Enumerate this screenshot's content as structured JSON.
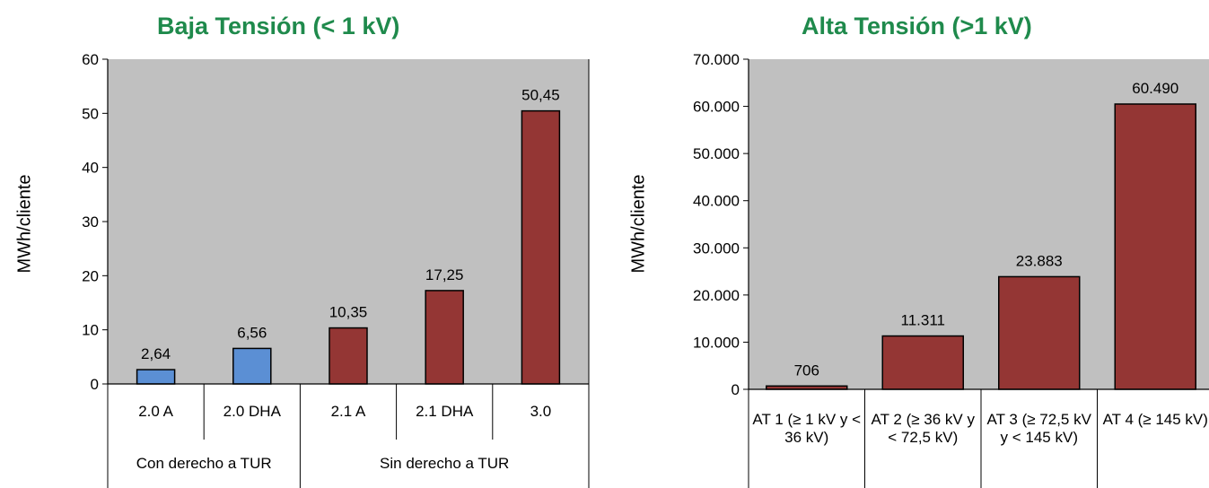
{
  "colors": {
    "title": "#1f8a4c",
    "plot_bg": "#c0c0c0",
    "blue": "#5b8fd4",
    "red": "#943634"
  },
  "chart_data": [
    {
      "type": "bar",
      "title": "Baja Tensión  (< 1 kV)",
      "ylabel": "MWh/cliente",
      "ylim": [
        0,
        60
      ],
      "yticks": [
        0,
        10,
        20,
        30,
        40,
        50,
        60
      ],
      "ytick_labels": [
        "0",
        "10",
        "20",
        "30",
        "40",
        "50",
        "60"
      ],
      "grid": false,
      "categories": [
        "2.0 A",
        "2.0 DHA",
        "2.1 A",
        "2.1 DHA",
        "3.0"
      ],
      "values": [
        2.64,
        6.56,
        10.35,
        17.25,
        50.45
      ],
      "value_labels": [
        "2,64",
        "6,56",
        "10,35",
        "17,25",
        "50,45"
      ],
      "bar_colors": [
        "blue",
        "blue",
        "red",
        "red",
        "red"
      ],
      "groups": [
        {
          "label": "Con derecho a TUR",
          "span": 2
        },
        {
          "label": "Sin derecho a TUR",
          "span": 3
        }
      ]
    },
    {
      "type": "bar",
      "title": "Alta Tensión  (>1 kV)",
      "ylabel": "MWh/cliente",
      "ylim": [
        0,
        70000
      ],
      "yticks": [
        0,
        10000,
        20000,
        30000,
        40000,
        50000,
        60000,
        70000
      ],
      "ytick_labels": [
        "0",
        "10.000",
        "20.000",
        "30.000",
        "40.000",
        "50.000",
        "60.000",
        "70.000"
      ],
      "grid": false,
      "categories": [
        "AT 1 (≥  1 kV y  < 36 kV)",
        "AT 2 (≥  36 kV y < 72,5 kV)",
        "AT 3 (≥ 72,5 kV y < 145 kV)",
        "AT 4 (≥ 145 kV)"
      ],
      "values": [
        706,
        11311,
        23883,
        60490
      ],
      "value_labels": [
        "706",
        "11.311",
        "23.883",
        "60.490"
      ],
      "bar_colors": [
        "red",
        "red",
        "red",
        "red"
      ]
    }
  ]
}
